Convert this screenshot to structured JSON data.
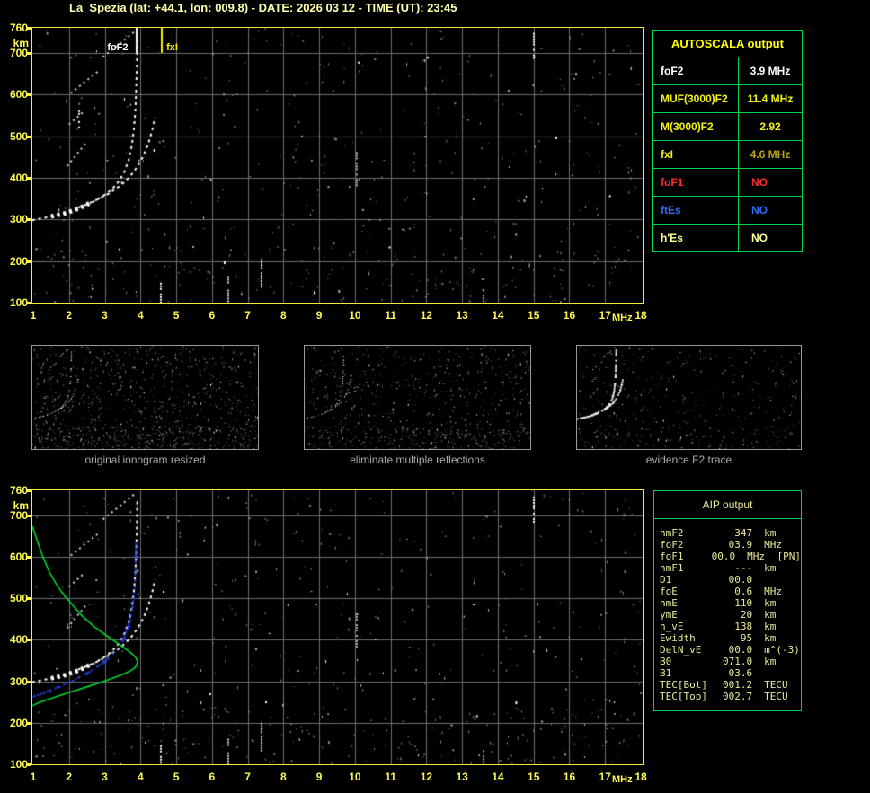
{
  "title": "La_Spezia (lat: +44.1, lon: 009.8) - DATE: 2026 03 12 - TIME (UT): 23:45",
  "colors": {
    "background": "#000000",
    "plot_border": "#eded3a",
    "axis_text": "#fdf753",
    "title_text": "#ffffaa",
    "grid": "#6f6f6f",
    "table_border": "#00d24e",
    "caption_text": "#a8a8a8",
    "thumb_border": "#9a9a9a",
    "trace_white": "#ffffff",
    "restored_blue": "#2a46ff",
    "profile_green": "#00d92e"
  },
  "chart_data": {
    "type": "scatter",
    "x_label": "MHz",
    "y_label": "km",
    "x_range": [
      1,
      18
    ],
    "y_range": [
      100,
      760
    ],
    "x_ticks": [
      1,
      2,
      3,
      4,
      5,
      6,
      7,
      8,
      9,
      10,
      11,
      12,
      13,
      14,
      15,
      16,
      17,
      18
    ],
    "y_ticks": [
      760,
      700,
      600,
      500,
      400,
      300,
      200,
      100
    ],
    "grid": true,
    "traces": {
      "o": [
        [
          0.97,
          298
        ],
        [
          1.2,
          302
        ],
        [
          1.5,
          307
        ],
        [
          1.8,
          313
        ],
        [
          2.1,
          321
        ],
        [
          2.4,
          331
        ],
        [
          2.7,
          343
        ],
        [
          2.95,
          356
        ],
        [
          3.2,
          372
        ],
        [
          3.4,
          392
        ],
        [
          3.55,
          415
        ],
        [
          3.67,
          442
        ],
        [
          3.76,
          478
        ],
        [
          3.82,
          520
        ],
        [
          3.86,
          565
        ],
        [
          3.88,
          615
        ],
        [
          3.9,
          670
        ],
        [
          3.91,
          735
        ]
      ],
      "o_core": [
        [
          1.5,
          307
        ],
        [
          1.9,
          315
        ],
        [
          2.3,
          327
        ],
        [
          2.6,
          340
        ]
      ],
      "x": [
        [
          2.25,
          328
        ],
        [
          2.55,
          338
        ],
        [
          2.85,
          350
        ],
        [
          3.15,
          364
        ],
        [
          3.45,
          382
        ],
        [
          3.7,
          402
        ],
        [
          3.9,
          425
        ],
        [
          4.08,
          452
        ],
        [
          4.22,
          482
        ],
        [
          4.33,
          515
        ],
        [
          4.41,
          545
        ]
      ],
      "hops": [
        [
          [
            1.95,
            428
          ],
          [
            2.5,
            486
          ]
        ],
        [
          [
            2.0,
            528
          ],
          [
            2.4,
            558
          ]
        ],
        [
          [
            2.05,
            603
          ],
          [
            2.85,
            658
          ]
        ],
        [
          [
            2.95,
            690
          ],
          [
            3.85,
            752
          ]
        ]
      ],
      "restored": [
        [
          0.97,
          262
        ],
        [
          1.3,
          272
        ],
        [
          1.7,
          286
        ],
        [
          2.1,
          301
        ],
        [
          2.5,
          319
        ],
        [
          2.8,
          335
        ],
        [
          3.1,
          355
        ],
        [
          3.35,
          379
        ],
        [
          3.55,
          406
        ],
        [
          3.68,
          439
        ],
        [
          3.78,
          479
        ],
        [
          3.84,
          527
        ],
        [
          3.86,
          572
        ],
        [
          3.875,
          630
        ]
      ],
      "profile": [
        [
          0.97,
          674
        ],
        [
          1.1,
          642
        ],
        [
          1.25,
          604
        ],
        [
          1.45,
          563
        ],
        [
          1.7,
          526
        ],
        [
          2.0,
          494
        ],
        [
          2.35,
          459
        ],
        [
          2.7,
          432
        ],
        [
          3.05,
          410
        ],
        [
          3.35,
          392
        ],
        [
          3.6,
          377
        ],
        [
          3.78,
          365
        ],
        [
          3.88,
          356
        ],
        [
          3.92,
          347
        ],
        [
          3.88,
          336
        ],
        [
          3.78,
          328
        ],
        [
          3.6,
          320
        ],
        [
          3.3,
          310
        ],
        [
          2.95,
          299
        ],
        [
          2.55,
          288
        ],
        [
          2.15,
          277
        ],
        [
          1.75,
          266
        ],
        [
          1.4,
          256
        ],
        [
          1.15,
          248
        ],
        [
          0.97,
          241
        ]
      ]
    },
    "plots": {
      "main_ionogram": {
        "markers": [
          {
            "param": "foF2",
            "label": "foF2",
            "mhz": 3.9,
            "color": "#ffffff",
            "side": "left"
          },
          {
            "param": "fxI",
            "label": "fxI",
            "mhz": 4.6,
            "color": "#ffee00",
            "side": "right"
          }
        ],
        "series": [
          {
            "trace": "o",
            "name": "F2 O-trace virtual height",
            "color": "#ffffff",
            "style": "dash",
            "width": 2
          },
          {
            "trace": "o_core",
            "name": "F2 O-trace strong echo",
            "color": "#ffffff",
            "style": "dash",
            "width": 5
          },
          {
            "trace": "x",
            "name": "F2 X-trace virtual height",
            "color": "#ffffff",
            "style": "dash",
            "width": 2
          },
          {
            "trace": "hops",
            "name": "multiple reflection echoes",
            "color": "#d8d8d8",
            "style": "dash",
            "width": 2
          }
        ],
        "clusters": [
          {
            "mhz": 2.28,
            "km": [
              512,
              562
            ],
            "color": "#ffffff"
          },
          {
            "mhz": 7.38,
            "km": [
              132,
              205
            ],
            "color": "#ffffff"
          },
          {
            "mhz": 10.05,
            "km": [
              378,
              468
            ],
            "color": "#aaaaaa"
          },
          {
            "mhz": 15.0,
            "km": [
              688,
              748
            ],
            "color": "#ffffff"
          },
          {
            "mhz": 4.58,
            "km": [
              100,
              148
            ],
            "color": "#ffffff"
          },
          {
            "mhz": 6.45,
            "km": [
              100,
              170
            ],
            "color": "#cccccc"
          },
          {
            "mhz": 13.6,
            "km": [
              100,
              132
            ],
            "color": "#aaaaaa"
          }
        ],
        "noise": {
          "seed": 7,
          "count": 420,
          "bottom_extra": 150
        }
      },
      "bottom_ionogram": {
        "markers": [],
        "series": [
          {
            "trace": "o",
            "name": "F2 O-trace virtual height",
            "color": "#ffffff",
            "style": "dash",
            "width": 2
          },
          {
            "trace": "o_core",
            "name": "F2 O-trace strong echo",
            "color": "#ffffff",
            "style": "dash",
            "width": 5
          },
          {
            "trace": "x",
            "name": "F2 X-trace virtual height",
            "color": "#ffffff",
            "style": "dash",
            "width": 2
          },
          {
            "trace": "hops",
            "name": "multiple reflection echoes",
            "color": "#d8d8d8",
            "style": "dash",
            "width": 2
          },
          {
            "trace": "restored",
            "name": "restored trace",
            "color": "#2a46ff",
            "style": "dots",
            "width": 2
          },
          {
            "trace": "profile",
            "name": "electron density profile",
            "color": "#00d92e",
            "style": "line",
            "width": 2
          }
        ],
        "clusters": [
          {
            "mhz": 15.0,
            "km": [
              685,
              745
            ],
            "color": "#ffffff"
          },
          {
            "mhz": 10.05,
            "km": [
              385,
              470
            ],
            "color": "#aaaaaa"
          },
          {
            "mhz": 7.38,
            "km": [
              135,
              200
            ],
            "color": "#dddddd"
          },
          {
            "mhz": 4.58,
            "km": [
              100,
              146
            ],
            "color": "#ffffff"
          },
          {
            "mhz": 6.45,
            "km": [
              100,
              168
            ],
            "color": "#cccccc"
          },
          {
            "mhz": 13.6,
            "km": [
              100,
              134
            ],
            "color": "#aaaaaa"
          }
        ],
        "noise": {
          "seed": 13,
          "count": 430,
          "bottom_extra": 160
        }
      },
      "thumbnails": [
        {
          "caption": "original ionogram resized",
          "noise": {
            "seed": 21,
            "count": 760,
            "bottom_extra": 260
          }
        },
        {
          "caption": "eliminate multiple reflections",
          "noise": {
            "seed": 31,
            "count": 560,
            "bottom_extra": 200
          }
        },
        {
          "caption": "evidence F2 trace",
          "noise": {
            "seed": 41,
            "count": 300,
            "bottom_extra": 90
          }
        }
      ]
    }
  },
  "autoscala_table": {
    "header": "AUTOSCALA output",
    "rows": [
      {
        "label": "foF2",
        "value": "3.9 MHz",
        "label_color": "#ffffff",
        "value_color": "#ffffff"
      },
      {
        "label": "MUF(3000)F2",
        "value": "11.4 MHz",
        "label_color": "#f2f215",
        "value_color": "#f2f215"
      },
      {
        "label": "M(3000)F2",
        "value": "2.92",
        "label_color": "#f2f215",
        "value_color": "#f2f215"
      },
      {
        "label": "fxI",
        "value": "4.6 MHz",
        "label_color": "#f2f215",
        "value_color": "#b8a414"
      },
      {
        "label": "foF1",
        "value": "NO",
        "label_color": "#ff2a2a",
        "value_color": "#ff2a2a"
      },
      {
        "label": "ftEs",
        "value": "NO",
        "label_color": "#2e6bff",
        "value_color": "#2e6bff"
      },
      {
        "label": "h'Es",
        "value": "NO",
        "label_color": "#ffff99",
        "value_color": "#ffff99"
      }
    ]
  },
  "aip_table": {
    "header": "AIP output",
    "rows": [
      {
        "param": "hmF2",
        "value": "347",
        "unit": "km",
        "extra": ""
      },
      {
        "param": "foF2",
        "value": "03.9",
        "unit": "MHz",
        "extra": ""
      },
      {
        "param": "foF1",
        "value": "00.0",
        "unit": "MHz",
        "extra": "[PN]"
      },
      {
        "param": "hmF1",
        "value": "---",
        "unit": "km",
        "extra": ""
      },
      {
        "param": "D1",
        "value": "00.0",
        "unit": "",
        "extra": ""
      },
      {
        "param": "foE",
        "value": "0.6",
        "unit": "MHz",
        "extra": ""
      },
      {
        "param": "hmE",
        "value": "110",
        "unit": "km",
        "extra": ""
      },
      {
        "param": "ymE",
        "value": "20",
        "unit": "km",
        "extra": ""
      },
      {
        "param": "h_vE",
        "value": "138",
        "unit": "km",
        "extra": ""
      },
      {
        "param": "Ewidth",
        "value": "95",
        "unit": "km",
        "extra": ""
      },
      {
        "param": "DelN_vE",
        "value": "00.0",
        "unit": "m^(-3)",
        "extra": ""
      },
      {
        "param": "B0",
        "value": "071.0",
        "unit": "km",
        "extra": ""
      },
      {
        "param": "B1",
        "value": "03.6",
        "unit": "",
        "extra": ""
      },
      {
        "param": "TEC[Bot]",
        "value": "001.2",
        "unit": "TECU",
        "extra": ""
      },
      {
        "param": "TEC[Top]",
        "value": "002.7",
        "unit": "TECU",
        "extra": ""
      }
    ]
  }
}
